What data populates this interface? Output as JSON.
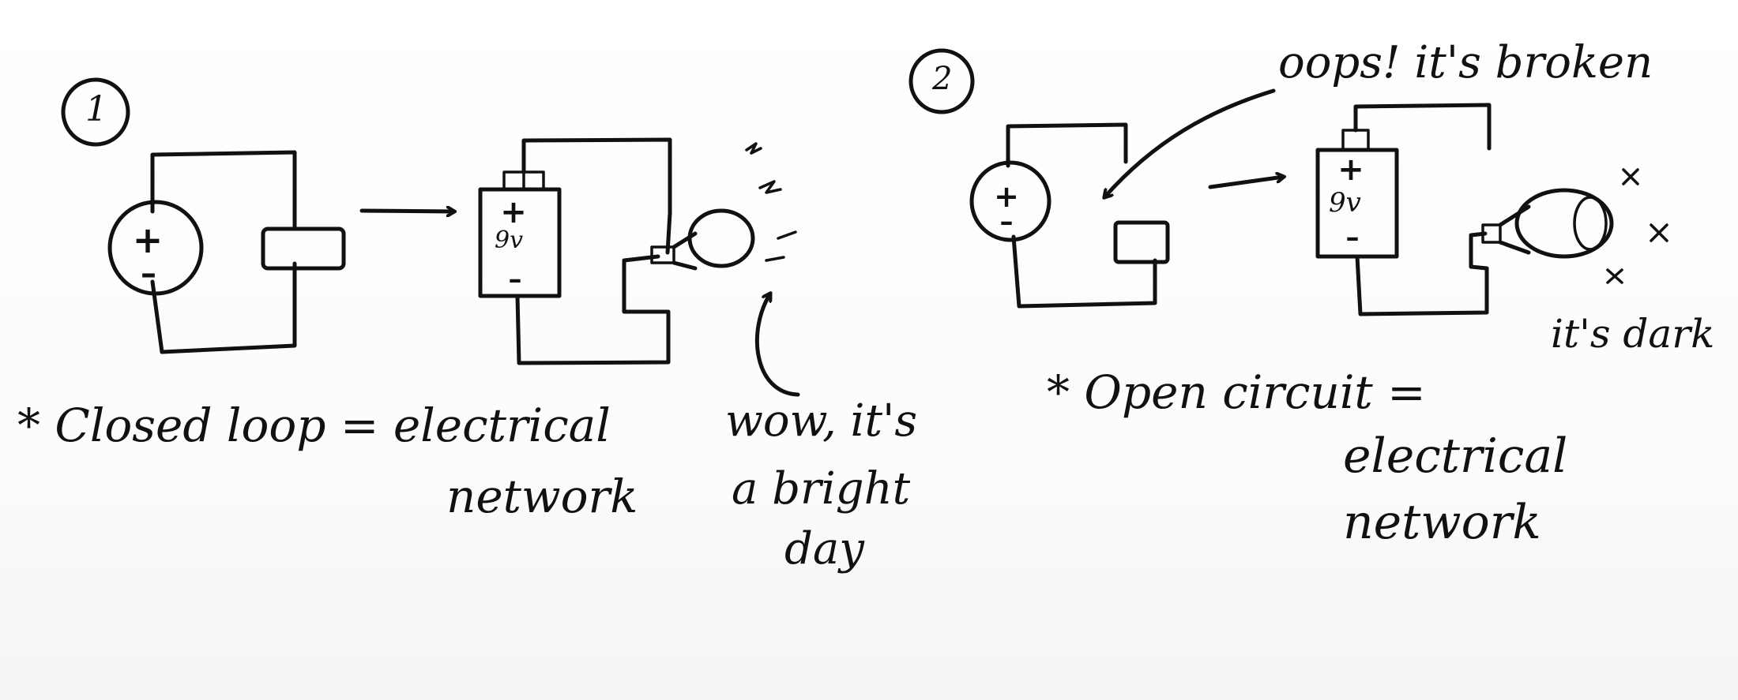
{
  "panel1": {
    "number": "1",
    "battery_label": "9v",
    "caption_line1": "* Closed loop = electrical",
    "caption_line2": "network",
    "note_line1": "wow, it's",
    "note_line2": "a bright",
    "note_line3": "day"
  },
  "panel2": {
    "number": "2",
    "battery_label": "9v",
    "callout": "oops! it's broken",
    "dark_note": "it's dark",
    "caption_line1": "* Open circuit =",
    "caption_line2": "electrical",
    "caption_line3": "network"
  }
}
